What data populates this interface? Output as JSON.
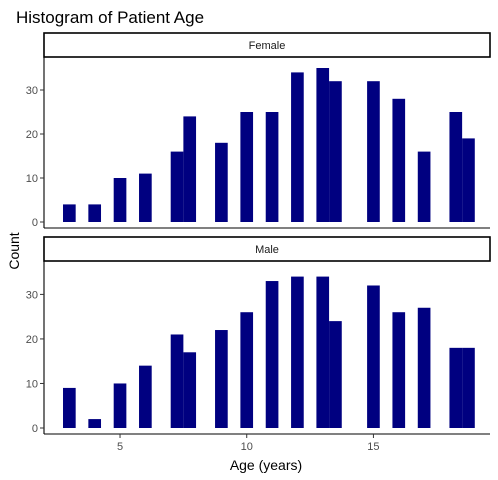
{
  "chart_data": {
    "type": "bar",
    "title": "Histogram of Patient Age",
    "xlabel": "Age (years)",
    "ylabel": "Count",
    "bar_color": "#000080",
    "x_ticks": [
      5,
      10,
      15
    ],
    "y_ticks": [
      0,
      10,
      20,
      30
    ],
    "xlim": [
      2.0,
      19.6
    ],
    "ylim": [
      0,
      37.5
    ],
    "grid": false,
    "legend": "none",
    "bin_width": 0.5,
    "panels": [
      {
        "name": "Female",
        "bins": [
          {
            "x": 3.0,
            "value": 4
          },
          {
            "x": 4.0,
            "value": 4
          },
          {
            "x": 5.0,
            "value": 10
          },
          {
            "x": 6.0,
            "value": 11
          },
          {
            "x": 7.25,
            "value": 16
          },
          {
            "x": 7.75,
            "value": 24
          },
          {
            "x": 9.0,
            "value": 18
          },
          {
            "x": 10.0,
            "value": 25
          },
          {
            "x": 11.0,
            "value": 25
          },
          {
            "x": 12.0,
            "value": 34
          },
          {
            "x": 13.0,
            "value": 35
          },
          {
            "x": 13.5,
            "value": 32
          },
          {
            "x": 15.0,
            "value": 32
          },
          {
            "x": 16.0,
            "value": 28
          },
          {
            "x": 17.0,
            "value": 16
          },
          {
            "x": 18.25,
            "value": 25
          },
          {
            "x": 18.75,
            "value": 19
          }
        ]
      },
      {
        "name": "Male",
        "bins": [
          {
            "x": 3.0,
            "value": 9
          },
          {
            "x": 4.0,
            "value": 2
          },
          {
            "x": 5.0,
            "value": 10
          },
          {
            "x": 6.0,
            "value": 14
          },
          {
            "x": 7.25,
            "value": 21
          },
          {
            "x": 7.75,
            "value": 17
          },
          {
            "x": 9.0,
            "value": 22
          },
          {
            "x": 10.0,
            "value": 26
          },
          {
            "x": 11.0,
            "value": 33
          },
          {
            "x": 12.0,
            "value": 34
          },
          {
            "x": 13.0,
            "value": 34
          },
          {
            "x": 13.5,
            "value": 24
          },
          {
            "x": 15.0,
            "value": 32
          },
          {
            "x": 16.0,
            "value": 26
          },
          {
            "x": 17.0,
            "value": 27
          },
          {
            "x": 18.25,
            "value": 18
          },
          {
            "x": 18.75,
            "value": 18
          }
        ]
      }
    ]
  }
}
